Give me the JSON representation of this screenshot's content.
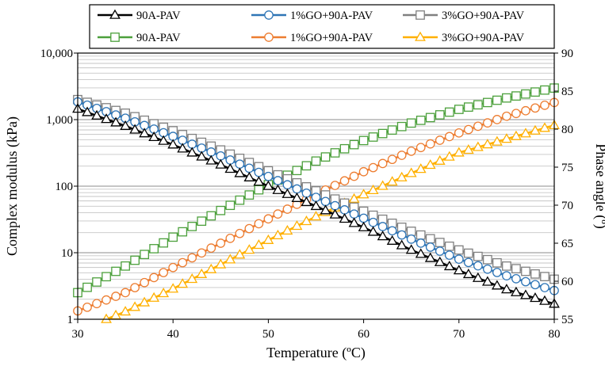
{
  "chart_data": {
    "type": "line",
    "xlabel": "Temperature (ºC)",
    "ylabel_left": "Complex modulus (kPa)",
    "ylabel_right": "Phase angle (º)",
    "xlim": [
      30,
      80
    ],
    "x_ticks": [
      30,
      40,
      50,
      60,
      70,
      80
    ],
    "y_left_scale": "log",
    "y_left_lim": [
      1,
      10000
    ],
    "y_left_ticks": [
      1,
      10,
      100,
      1000,
      10000
    ],
    "y_left_tick_labels": [
      "1",
      "10",
      "100",
      "1,000",
      "10,000"
    ],
    "y_right_lim": [
      55,
      90
    ],
    "y_right_ticks": [
      55,
      60,
      65,
      70,
      75,
      80,
      85,
      90
    ],
    "grid": "horizontal major and minor gridlines (log)",
    "legend_position": "top, outside plot, 2 rows x 3 columns, boxed",
    "series": [
      {
        "name": "90A-PAV",
        "axis": "left",
        "color": "#000000",
        "marker": "open-triangle",
        "x": [
          30,
          35,
          40,
          45,
          50,
          55,
          60,
          65,
          70,
          75,
          80
        ],
        "y": [
          1450,
          800,
          420,
          210,
          100,
          50,
          24,
          11,
          5.4,
          2.8,
          1.7
        ]
      },
      {
        "name": "1%GO+90A-PAV",
        "axis": "left",
        "color": "#2e75b6",
        "marker": "open-circle",
        "x": [
          30,
          35,
          40,
          45,
          50,
          55,
          60,
          65,
          70,
          75,
          80
        ],
        "y": [
          1850,
          1050,
          560,
          285,
          140,
          68,
          33,
          16,
          8,
          4.5,
          2.7
        ]
      },
      {
        "name": "3%GO+90A-PAV",
        "axis": "left",
        "color": "#808080",
        "marker": "open-square",
        "x": [
          30,
          35,
          40,
          45,
          50,
          55,
          60,
          65,
          70,
          75,
          80
        ],
        "y": [
          2000,
          1250,
          680,
          350,
          170,
          85,
          42,
          21,
          11,
          6.3,
          4
        ]
      },
      {
        "name": "90A-PAV",
        "axis": "right",
        "color": "#4ca03c",
        "marker": "open-square",
        "x": [
          30,
          35,
          40,
          45,
          50,
          55,
          60,
          65,
          70,
          75,
          80
        ],
        "y": [
          58.5,
          62,
          65.8,
          69.3,
          72.7,
          75.8,
          78.5,
          80.8,
          82.6,
          84.1,
          85.4
        ]
      },
      {
        "name": "1%GO+90A-PAV",
        "axis": "right",
        "color": "#ed7d31",
        "marker": "open-circle",
        "x": [
          30,
          35,
          40,
          45,
          50,
          55,
          60,
          65,
          70,
          75,
          80
        ],
        "y": [
          56.1,
          58.5,
          61.8,
          65,
          68.2,
          71.4,
          74.4,
          77.1,
          79.5,
          81.7,
          83.5
        ]
      },
      {
        "name": "3%GO+90A-PAV",
        "axis": "right",
        "color": "#ffb000",
        "marker": "open-triangle",
        "x": [
          33,
          35,
          40,
          45,
          50,
          55,
          60,
          65,
          70,
          75,
          80
        ],
        "y": [
          55,
          56,
          59,
          62.2,
          65.4,
          68.5,
          71.4,
          74.2,
          76.9,
          78.7,
          80.5
        ]
      }
    ]
  }
}
